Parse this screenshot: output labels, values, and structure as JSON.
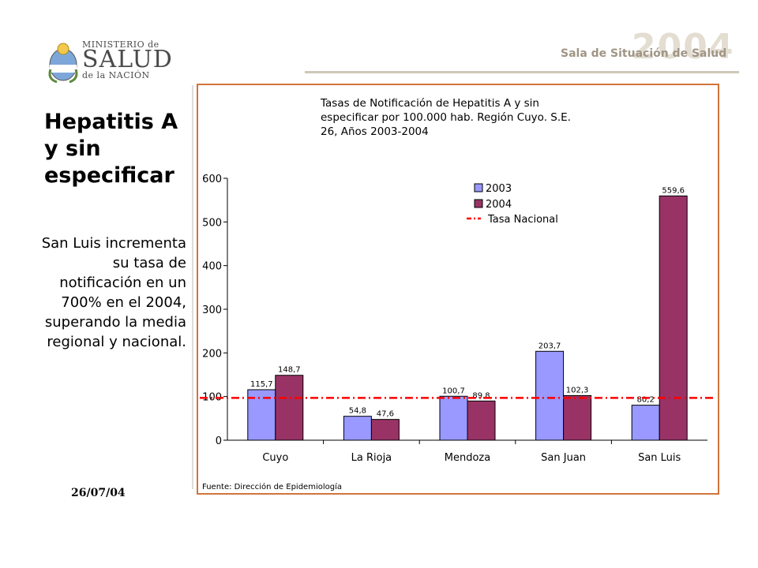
{
  "header": {
    "logo": {
      "line1": "MINISTERIO de",
      "line2": "SALUD",
      "line3": "de la NACIÓN"
    },
    "banner": "Sala de Situación de Salud",
    "banner_year": "2004"
  },
  "sidebar": {
    "title": "Hepatitis A y sin especificar",
    "text": "San Luis incrementa su tasa de notificación en un 700% en el 2004, superando la media regional y nacional.",
    "date": "26/07/04"
  },
  "chart_data": {
    "type": "bar",
    "title_lines": [
      "Tasas de Notificación de Hepatitis A y sin",
      "especificar por 100.000 hab. Región Cuyo. S.E.",
      "26, Años 2003-2004"
    ],
    "categories": [
      "Cuyo",
      "La Rioja",
      "Mendoza",
      "San Juan",
      "San Luis"
    ],
    "series": [
      {
        "name": "2003",
        "color": "#9999ff",
        "values": [
          115.7,
          54.8,
          100.7,
          203.7,
          80.2
        ],
        "labels": [
          "115,7",
          "54,8",
          "100,7",
          "203,7",
          "80,2"
        ]
      },
      {
        "name": "2004",
        "color": "#993366",
        "values": [
          148.7,
          47.6,
          89.8,
          102.3,
          559.6
        ],
        "labels": [
          "148,7",
          "47,6",
          "89,8",
          "102,3",
          "559,6"
        ]
      }
    ],
    "reference_line": {
      "name": "Tasa Nacional",
      "value": 97,
      "color": "#ff0000"
    },
    "ylim": [
      0,
      600
    ],
    "yticks": [
      0,
      100,
      200,
      300,
      400,
      500,
      600
    ],
    "legend_position": "top-right",
    "source": "Fuente: Dirección de Epidemiología"
  }
}
